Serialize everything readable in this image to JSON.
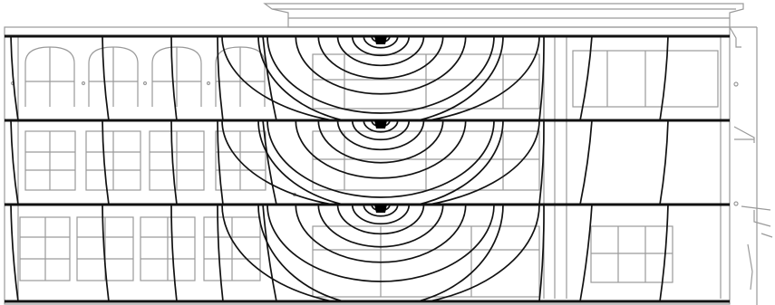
{
  "figure": {
    "subject": "building-facade-elevation",
    "floors": 3,
    "colors": {
      "background": "#ffffff",
      "facade_lines": "#9a9a9a",
      "floor_slabs": "#111111",
      "contours": "#111111",
      "source": "#000000"
    },
    "icons": [
      "sound-source-icon",
      "contour-arcs",
      "window-grid"
    ]
  }
}
